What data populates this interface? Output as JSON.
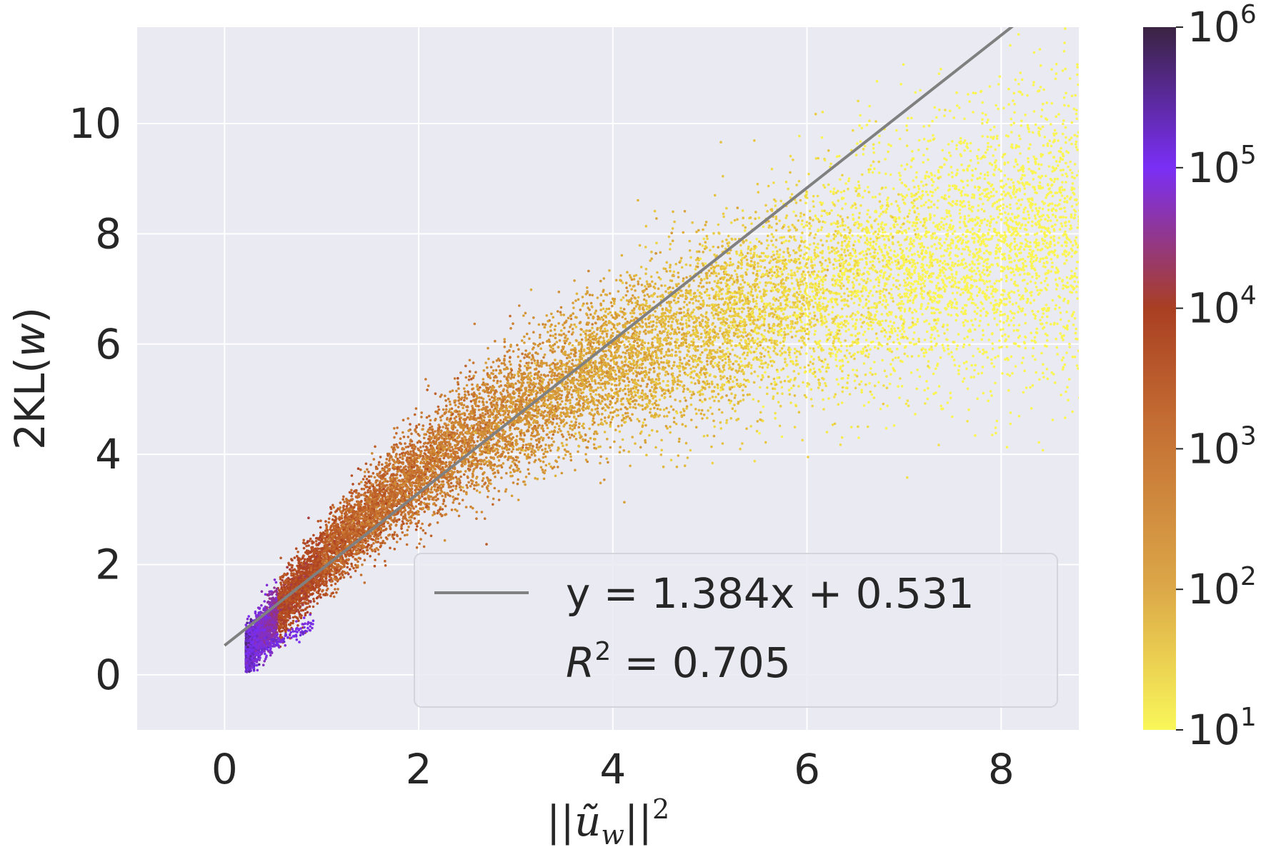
{
  "chart_data": {
    "type": "scatter",
    "title": "",
    "xlabel": "||ũ_w||²",
    "xlabel_parts": {
      "pre": "||",
      "base": "ũ",
      "sub": "w",
      "post": "||",
      "sup": "2"
    },
    "ylabel": "2KL(w)",
    "ylabel_parts": {
      "pre": "2KL(",
      "var": "w",
      "post": ")"
    },
    "xlim": [
      -0.9,
      8.8
    ],
    "ylim": [
      -1.0,
      11.75
    ],
    "x_ticks": [
      0,
      2,
      4,
      6,
      8
    ],
    "y_ticks": [
      0,
      2,
      4,
      6,
      8,
      10
    ],
    "x_tick_labels": [
      "0",
      "2",
      "4",
      "6",
      "8"
    ],
    "y_tick_labels": [
      "0",
      "2",
      "4",
      "6",
      "8",
      "10"
    ],
    "grid": true,
    "background": "#eaeaf2",
    "fit_line": {
      "slope": 1.384,
      "intercept": 0.531,
      "x_range": [
        0,
        8.8
      ],
      "color": "#808080"
    },
    "legend": {
      "placement": "lower-right",
      "entry_label": "y = 1.384x + 0.531",
      "r2_symbol": "R",
      "r2_exponent": "2",
      "r2_value": " = 0.705"
    },
    "density_regions": [
      {
        "x_range": [
          0.2,
          0.9
        ],
        "y_range": [
          0.1,
          1.0
        ],
        "count_log10": "5-6",
        "color": "#7a2ff5"
      },
      {
        "x_range": [
          0.3,
          1.5
        ],
        "y_range": [
          0.8,
          3.0
        ],
        "count_log10": "3-4",
        "color": "#b8461e"
      },
      {
        "x_range": [
          1.0,
          3.5
        ],
        "y_range": [
          2.0,
          5.5
        ],
        "count_log10": "2-3",
        "color": "#d9962e"
      },
      {
        "x_range": [
          3.0,
          8.8
        ],
        "y_range": [
          4.0,
          11.5
        ],
        "count_log10": "1-2",
        "color": "#f7e840"
      }
    ],
    "colorbar": {
      "scale": "log",
      "range": [
        10,
        1000000
      ],
      "tick_labels": [
        {
          "base": "10",
          "exp": "1"
        },
        {
          "base": "10",
          "exp": "2"
        },
        {
          "base": "10",
          "exp": "3"
        },
        {
          "base": "10",
          "exp": "4"
        },
        {
          "base": "10",
          "exp": "5"
        },
        {
          "base": "10",
          "exp": "6"
        }
      ],
      "colors": [
        "#f9f75a",
        "#dca848",
        "#c26a32",
        "#a93f22",
        "#7a2ff5",
        "#3a2442"
      ]
    }
  }
}
